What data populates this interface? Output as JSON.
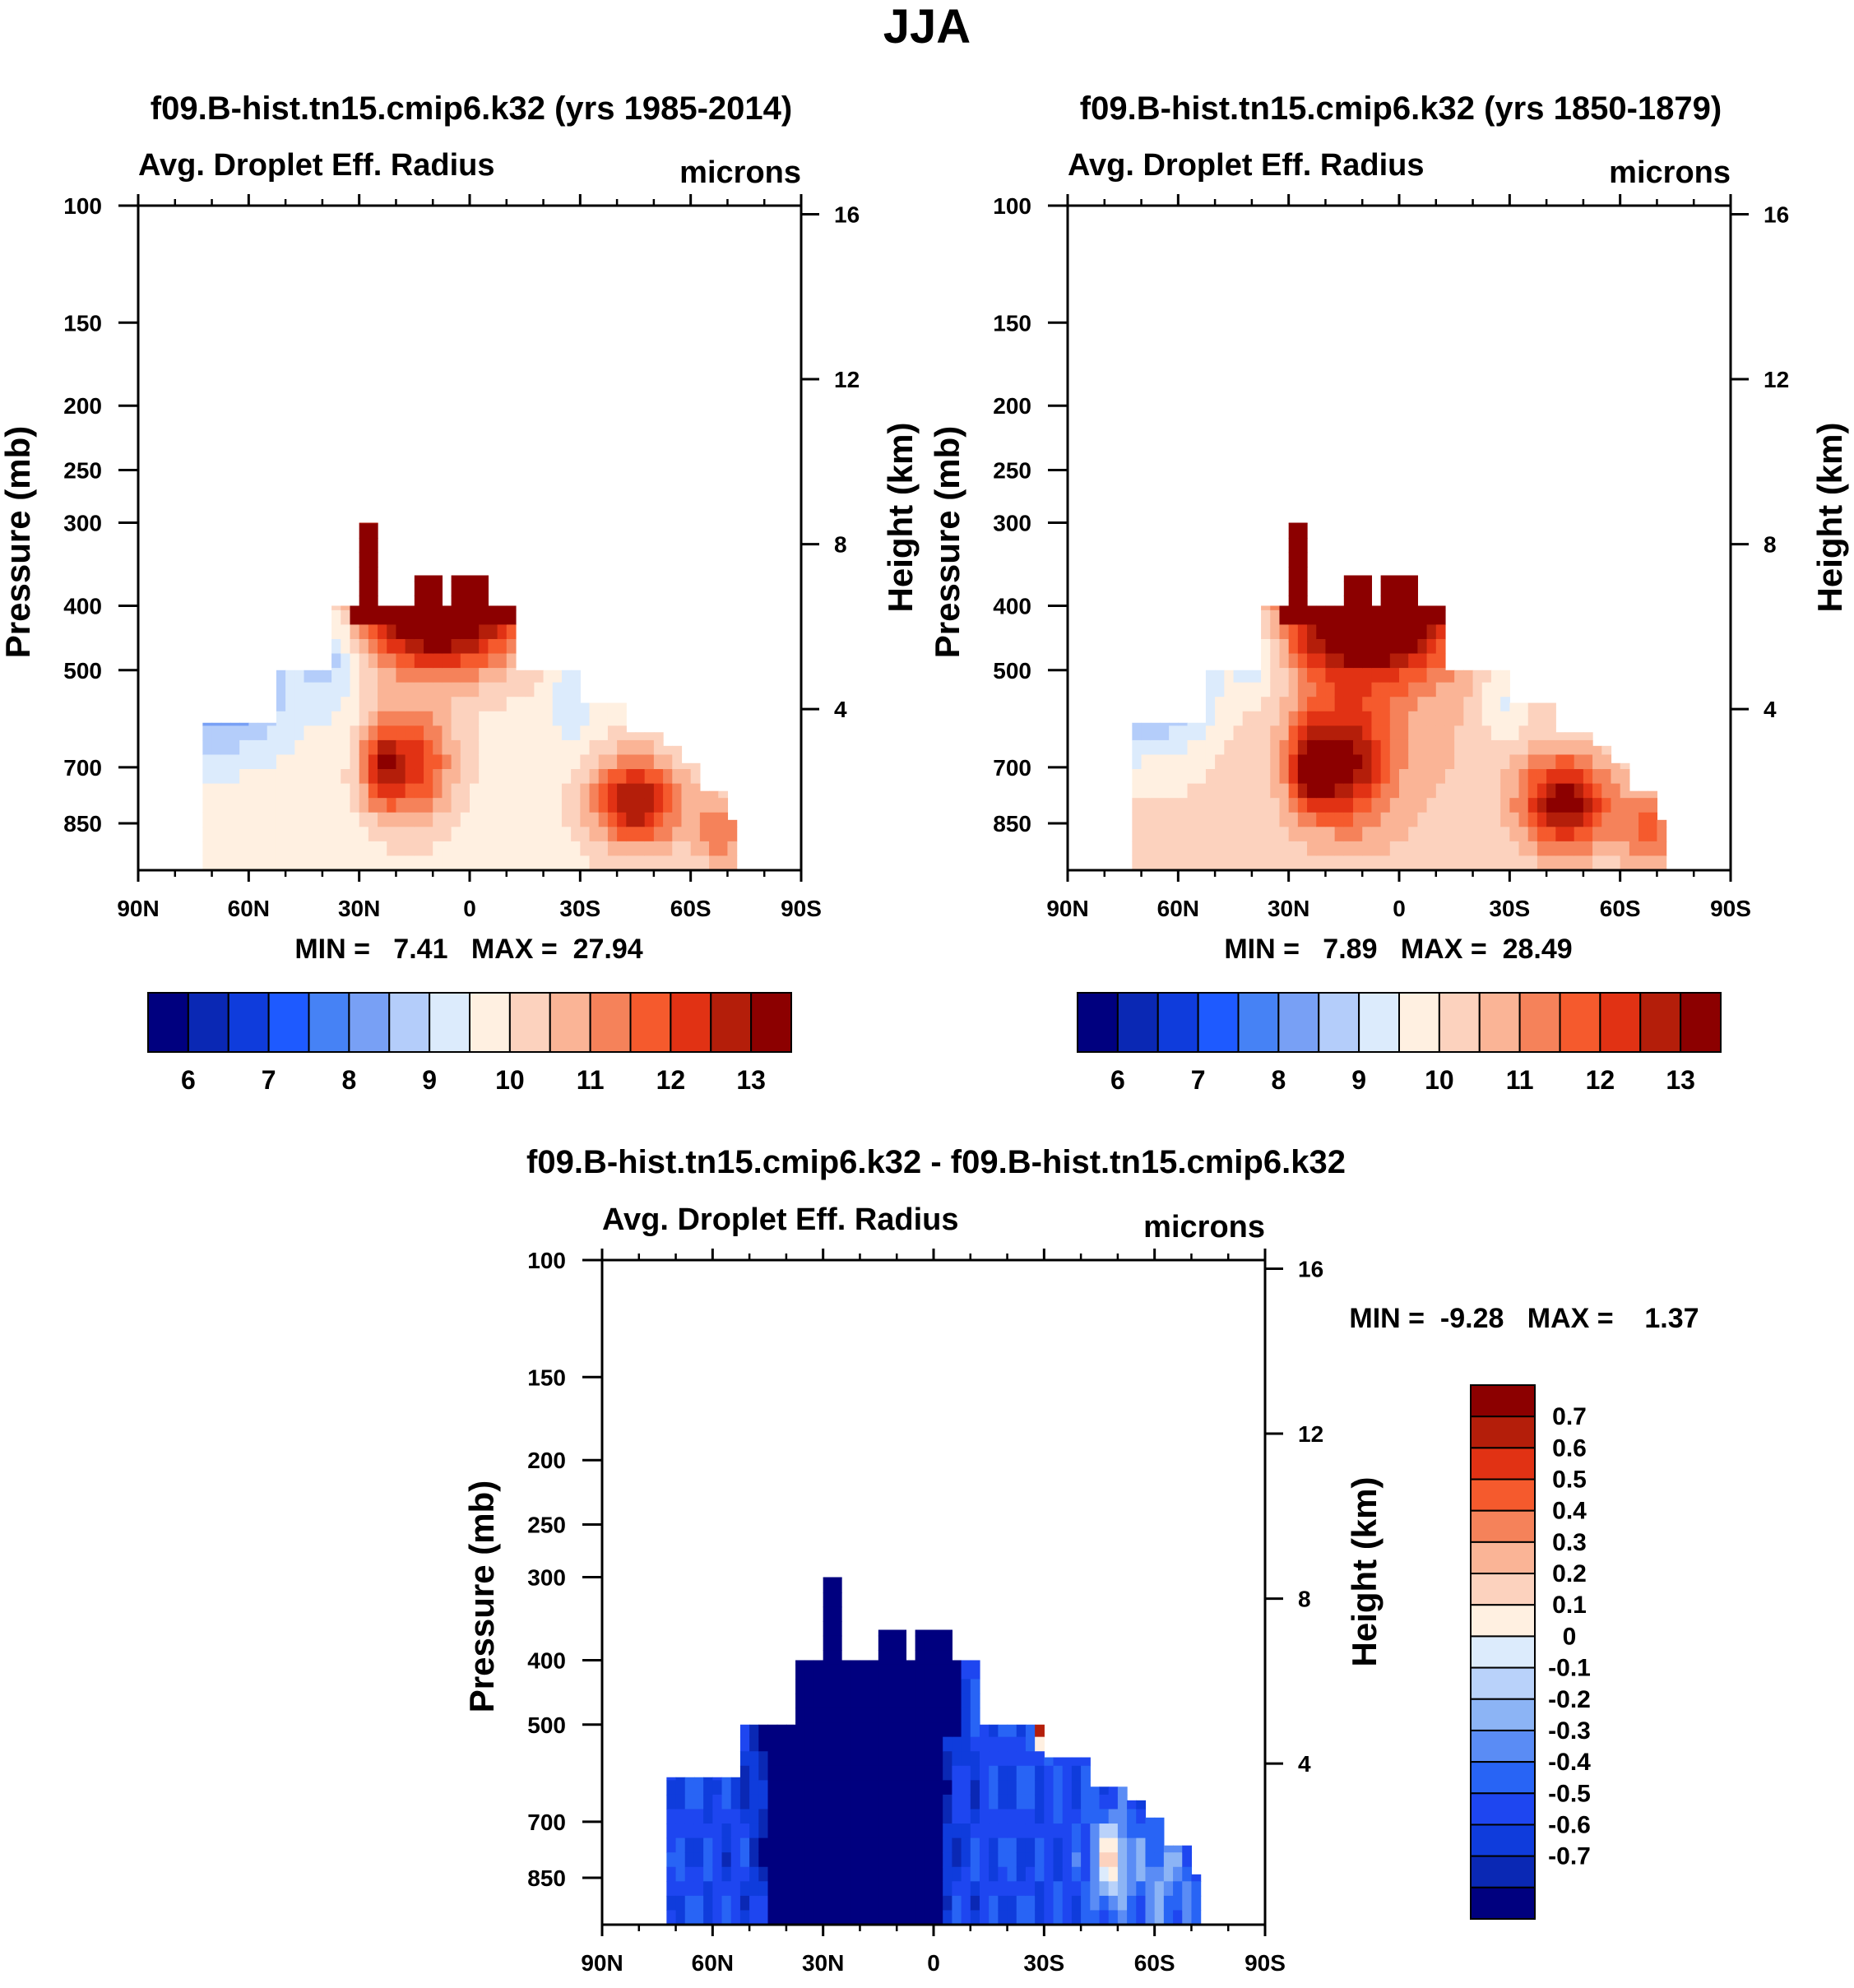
{
  "main_title": "JJA",
  "colors": {
    "abs_palette": [
      "#00007f",
      "#0a28b4",
      "#0f3cdc",
      "#1e5aff",
      "#4682f5",
      "#78a0f5",
      "#b4cdfa",
      "#dcebfc",
      "#fff0e1",
      "#fcd2be",
      "#fab496",
      "#f5825a",
      "#f55a2d",
      "#e13214",
      "#b41e0a",
      "#8c0000"
    ],
    "diff_palette": [
      "#00007f",
      "#0a28b4",
      "#0f3cdc",
      "#1e46f0",
      "#2864f5",
      "#5a8cf5",
      "#8cb4f5",
      "#b9d2fa",
      "#dcebfc",
      "#fff0e1",
      "#fcd2be",
      "#fab496",
      "#f5825a",
      "#f55a2d",
      "#e13214",
      "#b41e0a",
      "#8c0000"
    ]
  },
  "chart_data": [
    {
      "id": "panel1",
      "type": "heatmap",
      "title": "f09.B-hist.tn15.cmip6.k32 (yrs 1985-2014)",
      "left_string": "Avg. Droplet Eff. Radius",
      "right_string": "microns",
      "ylabel": "Pressure (mb)",
      "y2label": "Height (km)",
      "x_ticks": [
        "90N",
        "60N",
        "30N",
        "0",
        "30S",
        "60S",
        "90S"
      ],
      "y_ticks": [
        "100",
        "150",
        "200",
        "250",
        "300",
        "400",
        "500",
        "700",
        "850"
      ],
      "y_tick_values": [
        100,
        150,
        200,
        250,
        300,
        400,
        500,
        700,
        850
      ],
      "y2_ticks": [
        "16",
        "12",
        "8",
        "4"
      ],
      "y2_tick_values": [
        16,
        12,
        8,
        4
      ],
      "ylim": [
        100,
        1000
      ],
      "minmax": "MIN =   7.41   MAX =  27.94",
      "colorbar_labels": [
        "6",
        "7",
        "8",
        "9",
        "10",
        "11",
        "12",
        "13"
      ],
      "variant": "pi"
    },
    {
      "id": "panel2",
      "type": "heatmap",
      "title": "f09.B-hist.tn15.cmip6.k32 (yrs 1850-1879)",
      "left_string": "Avg. Droplet Eff. Radius",
      "right_string": "microns",
      "ylabel": "Pressure (mb)",
      "y2label": "Height (km)",
      "x_ticks": [
        "90N",
        "60N",
        "30N",
        "0",
        "30S",
        "60S",
        "90S"
      ],
      "y_ticks": [
        "100",
        "150",
        "200",
        "250",
        "300",
        "400",
        "500",
        "700",
        "850"
      ],
      "y_tick_values": [
        100,
        150,
        200,
        250,
        300,
        400,
        500,
        700,
        850
      ],
      "y2_ticks": [
        "16",
        "12",
        "8",
        "4"
      ],
      "y2_tick_values": [
        16,
        12,
        8,
        4
      ],
      "ylim": [
        100,
        1000
      ],
      "minmax": "MIN =   7.89   MAX =  28.49",
      "colorbar_labels": [
        "6",
        "7",
        "8",
        "9",
        "10",
        "11",
        "12",
        "13"
      ],
      "variant": "pi2"
    },
    {
      "id": "panel3",
      "type": "heatmap",
      "title": "f09.B-hist.tn15.cmip6.k32 - f09.B-hist.tn15.cmip6.k32",
      "left_string": "Avg. Droplet Eff. Radius",
      "right_string": "microns",
      "ylabel": "Pressure (mb)",
      "y2label": "Height (km)",
      "x_ticks": [
        "90N",
        "60N",
        "30N",
        "0",
        "30S",
        "60S",
        "90S"
      ],
      "y_ticks": [
        "100",
        "150",
        "200",
        "250",
        "300",
        "400",
        "500",
        "700",
        "850"
      ],
      "y_tick_values": [
        100,
        150,
        200,
        250,
        300,
        400,
        500,
        700,
        850
      ],
      "y2_ticks": [
        "16",
        "12",
        "8",
        "4"
      ],
      "y2_tick_values": [
        16,
        12,
        8,
        4
      ],
      "ylim": [
        100,
        1000
      ],
      "minmax": "MIN =  -9.28   MAX =    1.37",
      "colorbar_labels": [
        "0.7",
        "0.6",
        "0.5",
        "0.4",
        "0.3",
        "0.2",
        "0.1",
        "0",
        "-0.1",
        "-0.2",
        "-0.3",
        "-0.4",
        "-0.5",
        "-0.6",
        "-0.7"
      ],
      "variant": "diff"
    }
  ]
}
